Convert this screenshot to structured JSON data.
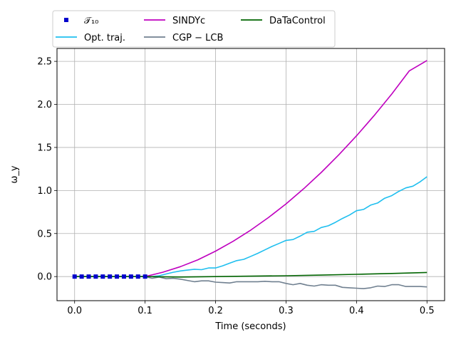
{
  "chart_data": {
    "type": "line",
    "xlabel": "Time (seconds)",
    "ylabel": "ω_y",
    "xlim": [
      -0.025,
      0.525
    ],
    "ylim": [
      -0.28,
      2.65
    ],
    "xticks": [
      0.0,
      0.1,
      0.2,
      0.3,
      0.4,
      0.5
    ],
    "xtick_labels": [
      "0.0",
      "0.1",
      "0.2",
      "0.3",
      "0.4",
      "0.5"
    ],
    "yticks": [
      0.0,
      0.5,
      1.0,
      1.5,
      2.0,
      2.5
    ],
    "ytick_labels": [
      "0.0",
      "0.5",
      "1.0",
      "1.5",
      "2.0",
      "2.5"
    ],
    "grid": true,
    "legend_position": "top-left, above plot",
    "series": [
      {
        "name": "𝒯₁₀",
        "kind": "markers",
        "color": "#0000cc",
        "x": [
          0.0,
          0.01,
          0.02,
          0.03,
          0.04,
          0.05,
          0.06,
          0.07,
          0.08,
          0.09,
          0.1
        ],
        "y": [
          0,
          0,
          0,
          0,
          0,
          0,
          0,
          0,
          0,
          0,
          0
        ]
      },
      {
        "name": "Opt. traj.",
        "kind": "line",
        "color": "#1fbfef",
        "x": [
          0.0,
          0.1,
          0.11,
          0.12,
          0.13,
          0.14,
          0.15,
          0.16,
          0.17,
          0.18,
          0.19,
          0.2,
          0.21,
          0.22,
          0.23,
          0.24,
          0.25,
          0.26,
          0.27,
          0.28,
          0.29,
          0.3,
          0.31,
          0.32,
          0.33,
          0.34,
          0.35,
          0.36,
          0.37,
          0.38,
          0.39,
          0.4,
          0.41,
          0.42,
          0.43,
          0.44,
          0.45,
          0.46,
          0.47,
          0.48,
          0.49,
          0.5
        ],
        "y": [
          0.0,
          0.0,
          0.0,
          0.01,
          0.03,
          0.05,
          0.065,
          0.075,
          0.085,
          0.08,
          0.1,
          0.1,
          0.125,
          0.155,
          0.185,
          0.2,
          0.235,
          0.27,
          0.31,
          0.35,
          0.385,
          0.42,
          0.43,
          0.47,
          0.515,
          0.525,
          0.57,
          0.59,
          0.63,
          0.675,
          0.715,
          0.765,
          0.78,
          0.83,
          0.855,
          0.91,
          0.94,
          0.99,
          1.03,
          1.05,
          1.1,
          1.16
        ]
      },
      {
        "name": "SINDYc",
        "kind": "line",
        "color": "#bf00bf",
        "x": [
          0.0,
          0.1,
          0.125,
          0.15,
          0.175,
          0.2,
          0.225,
          0.25,
          0.275,
          0.3,
          0.325,
          0.35,
          0.375,
          0.4,
          0.425,
          0.45,
          0.475,
          0.5
        ],
        "y": [
          0.0,
          0.0,
          0.05,
          0.115,
          0.195,
          0.295,
          0.41,
          0.54,
          0.685,
          0.845,
          1.02,
          1.21,
          1.415,
          1.635,
          1.87,
          2.12,
          2.39,
          2.51
        ]
      },
      {
        "name": "CGP − LCB",
        "kind": "line",
        "color": "#708090",
        "x": [
          0.0,
          0.1,
          0.11,
          0.12,
          0.13,
          0.14,
          0.15,
          0.16,
          0.17,
          0.18,
          0.19,
          0.2,
          0.21,
          0.22,
          0.23,
          0.24,
          0.25,
          0.26,
          0.27,
          0.28,
          0.29,
          0.3,
          0.31,
          0.32,
          0.33,
          0.34,
          0.35,
          0.36,
          0.37,
          0.38,
          0.39,
          0.4,
          0.41,
          0.42,
          0.43,
          0.44,
          0.45,
          0.46,
          0.47,
          0.48,
          0.49,
          0.5
        ],
        "y": [
          0.0,
          0.0,
          -0.02,
          -0.005,
          -0.025,
          -0.02,
          -0.03,
          -0.045,
          -0.06,
          -0.05,
          -0.05,
          -0.065,
          -0.07,
          -0.075,
          -0.06,
          -0.06,
          -0.06,
          -0.06,
          -0.055,
          -0.06,
          -0.06,
          -0.08,
          -0.095,
          -0.08,
          -0.1,
          -0.11,
          -0.095,
          -0.1,
          -0.1,
          -0.125,
          -0.13,
          -0.135,
          -0.14,
          -0.13,
          -0.11,
          -0.115,
          -0.095,
          -0.095,
          -0.115,
          -0.115,
          -0.115,
          -0.12
        ]
      },
      {
        "name": "DaTaControl",
        "kind": "line",
        "color": "#006400",
        "x": [
          0.0,
          0.1,
          0.15,
          0.2,
          0.25,
          0.3,
          0.35,
          0.4,
          0.45,
          0.5
        ],
        "y": [
          0.0,
          0.0,
          -0.005,
          0.0,
          0.005,
          0.01,
          0.017,
          0.026,
          0.036,
          0.048
        ]
      }
    ]
  }
}
